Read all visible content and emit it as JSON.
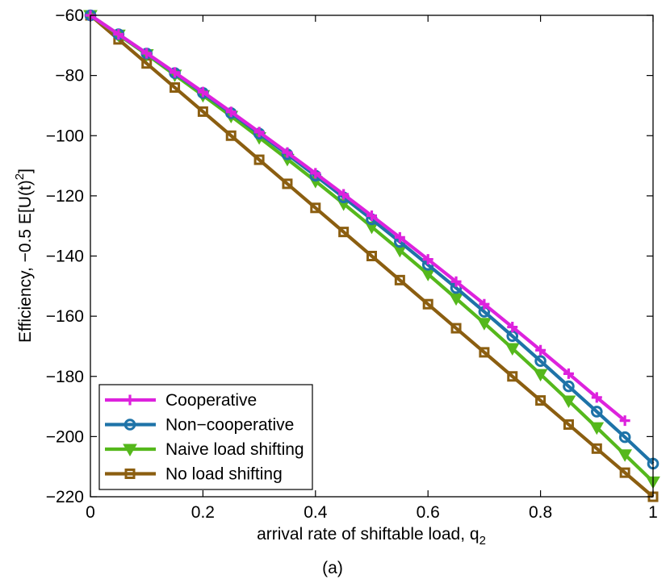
{
  "chart_data": {
    "type": "line",
    "title": "",
    "caption": "(a)",
    "xlabel": "arrival rate of shiftable load, q",
    "xlabel_sub": "2",
    "ylabel": "Efficiency, −0.5 E[U(t)",
    "ylabel_sup": "2",
    "ylabel_end": "]",
    "xlim": [
      0,
      1
    ],
    "ylim": [
      -220,
      -60
    ],
    "xticks": [
      0,
      0.2,
      0.4,
      0.6,
      0.8,
      1
    ],
    "xtick_labels": [
      "0",
      "0.2",
      "0.4",
      "0.6",
      "0.8",
      "1"
    ],
    "yticks": [
      -60,
      -80,
      -100,
      -120,
      -140,
      -160,
      -180,
      -200,
      -220
    ],
    "ytick_labels": [
      "−60",
      "−80",
      "−100",
      "−120",
      "−140",
      "−160",
      "−180",
      "−200",
      "−220"
    ],
    "grid": false,
    "legend_position": "bottom-left",
    "series": [
      {
        "name": "Cooperative",
        "color": "#dd22dd",
        "marker": "plus",
        "x": [
          0,
          0.05,
          0.1,
          0.15,
          0.2,
          0.25,
          0.3,
          0.35,
          0.4,
          0.45,
          0.5,
          0.55,
          0.6,
          0.65,
          0.7,
          0.75,
          0.8,
          0.85,
          0.9,
          0.95
        ],
        "y": [
          -60,
          -66.3,
          -72.6,
          -79.0,
          -85.5,
          -92.1,
          -98.8,
          -105.6,
          -112.5,
          -119.5,
          -126.6,
          -133.8,
          -141.1,
          -148.5,
          -156.0,
          -163.6,
          -171.3,
          -179.1,
          -187.0,
          -194.7
        ]
      },
      {
        "name": "Non−cooperative",
        "color": "#1e73a8",
        "marker": "circle",
        "x": [
          0,
          0.05,
          0.1,
          0.15,
          0.2,
          0.25,
          0.3,
          0.35,
          0.4,
          0.45,
          0.5,
          0.55,
          0.6,
          0.65,
          0.7,
          0.75,
          0.8,
          0.85,
          0.9,
          0.95,
          1
        ],
        "y": [
          -60,
          -66.3,
          -72.7,
          -79.2,
          -85.8,
          -92.5,
          -99.3,
          -106.2,
          -113.3,
          -120.5,
          -127.8,
          -135.3,
          -142.9,
          -150.6,
          -158.5,
          -166.6,
          -174.9,
          -183.3,
          -191.7,
          -200.2,
          -209.0
        ]
      },
      {
        "name": "Naive load shifting",
        "color": "#55b81c",
        "marker": "triangle-down",
        "x": [
          0,
          0.05,
          0.1,
          0.15,
          0.2,
          0.25,
          0.3,
          0.35,
          0.4,
          0.45,
          0.5,
          0.55,
          0.6,
          0.65,
          0.7,
          0.75,
          0.8,
          0.85,
          0.9,
          0.95,
          1
        ],
        "y": [
          -60,
          -66.5,
          -73.0,
          -79.8,
          -86.6,
          -93.5,
          -100.6,
          -107.8,
          -115.1,
          -122.6,
          -130.3,
          -138.1,
          -146.0,
          -154.1,
          -162.3,
          -170.7,
          -179.3,
          -188.1,
          -197.0,
          -206.0,
          -215.0
        ]
      },
      {
        "name": "No load shifting",
        "color": "#8b5e10",
        "marker": "square",
        "x": [
          0,
          0.05,
          0.1,
          0.15,
          0.2,
          0.25,
          0.3,
          0.35,
          0.4,
          0.45,
          0.5,
          0.55,
          0.6,
          0.65,
          0.7,
          0.75,
          0.8,
          0.85,
          0.9,
          0.95,
          1
        ],
        "y": [
          -60,
          -68,
          -76,
          -84,
          -92,
          -100,
          -108,
          -116,
          -124,
          -132,
          -140,
          -148,
          -156,
          -164,
          -172,
          -180,
          -188,
          -196,
          -204,
          -212,
          -220
        ]
      }
    ]
  }
}
